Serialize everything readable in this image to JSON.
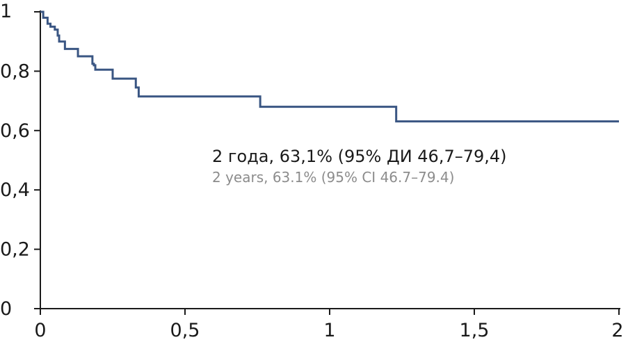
{
  "chart_data": {
    "type": "line",
    "title": "",
    "xlabel": "",
    "ylabel": "",
    "xlim": [
      0,
      2
    ],
    "ylim": [
      0,
      1
    ],
    "x_ticks": [
      0,
      0.5,
      1,
      1.5,
      2
    ],
    "x_tick_labels": [
      "0",
      "0,5",
      "1",
      "1,5",
      "2"
    ],
    "y_ticks": [
      0,
      0.2,
      0.4,
      0.6,
      0.8,
      1
    ],
    "y_tick_labels": [
      "0",
      "0,2",
      "0,4",
      "0,6",
      "0,8",
      "1"
    ],
    "grid": false,
    "step": true,
    "series": [
      {
        "color": "#3a5683",
        "x": [
          0,
          0.01,
          0.025,
          0.035,
          0.05,
          0.06,
          0.065,
          0.085,
          0.13,
          0.18,
          0.185,
          0.19,
          0.25,
          0.33,
          0.34,
          0.76,
          1.23,
          2.0
        ],
        "y": [
          1,
          0.98,
          0.96,
          0.95,
          0.94,
          0.92,
          0.9,
          0.875,
          0.85,
          0.825,
          0.82,
          0.805,
          0.775,
          0.745,
          0.715,
          0.68,
          0.631,
          0.631
        ]
      }
    ],
    "annotations": [
      {
        "text": "2 года, 63,1% (95% ДИ 46,7–79,4)",
        "style": "primary"
      },
      {
        "text": "2 years, 63.1% (95% CI 46.7–79.4)",
        "style": "secondary"
      }
    ]
  }
}
